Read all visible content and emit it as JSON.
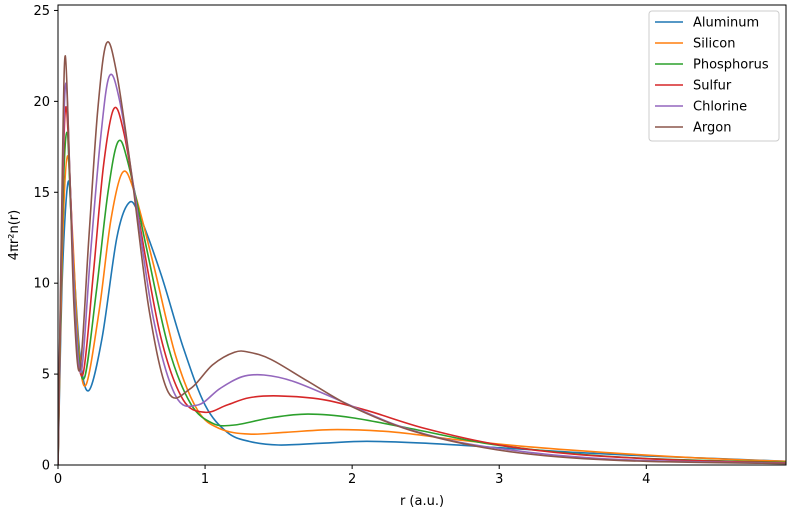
{
  "chart_data": {
    "type": "line",
    "title": "",
    "xlabel": "r (a.u.)",
    "ylabel": "4πr²n(r)",
    "xlim": [
      0,
      4.95
    ],
    "ylim": [
      0,
      25.3
    ],
    "xticks": [
      0,
      1,
      2,
      3,
      4
    ],
    "yticks": [
      0,
      5,
      10,
      15,
      20,
      25
    ],
    "grid": false,
    "legend_position": "top-right",
    "series": [
      {
        "name": "Aluminum",
        "color": "#1f77b4",
        "x": [
          0,
          0.03,
          0.07,
          0.1,
          0.15,
          0.21,
          0.3,
          0.4,
          0.48,
          0.55,
          0.7,
          0.85,
          1.0,
          1.15,
          1.3,
          1.5,
          1.8,
          2.1,
          2.5,
          3.0,
          3.5,
          4.0,
          4.5,
          4.95
        ],
        "y": [
          0,
          10.5,
          15.6,
          12.0,
          6.0,
          4.1,
          7.0,
          12.5,
          14.4,
          13.8,
          10.5,
          6.5,
          3.3,
          1.8,
          1.3,
          1.1,
          1.2,
          1.3,
          1.2,
          0.95,
          0.7,
          0.5,
          0.35,
          0.2
        ]
      },
      {
        "name": "Silicon",
        "color": "#ff7f0e",
        "x": [
          0,
          0.03,
          0.065,
          0.1,
          0.14,
          0.19,
          0.28,
          0.36,
          0.44,
          0.52,
          0.65,
          0.8,
          0.95,
          1.1,
          1.3,
          1.55,
          1.9,
          2.3,
          2.7,
          3.2,
          3.7,
          4.2,
          4.6,
          4.95
        ],
        "y": [
          0,
          12.0,
          17.0,
          12.5,
          6.5,
          4.4,
          8.5,
          13.5,
          16.1,
          15.0,
          11.0,
          6.0,
          3.0,
          2.0,
          1.7,
          1.8,
          1.95,
          1.8,
          1.4,
          1.0,
          0.7,
          0.45,
          0.3,
          0.2
        ]
      },
      {
        "name": "Phosphorus",
        "color": "#2ca02c",
        "x": [
          0,
          0.03,
          0.06,
          0.09,
          0.13,
          0.18,
          0.26,
          0.34,
          0.41,
          0.48,
          0.6,
          0.75,
          0.9,
          1.05,
          1.2,
          1.45,
          1.7,
          2.0,
          2.4,
          2.9,
          3.4,
          3.9,
          4.4,
          4.95
        ],
        "y": [
          0,
          13.5,
          18.3,
          13.5,
          7.0,
          4.8,
          9.5,
          15.0,
          17.8,
          16.5,
          12.0,
          6.5,
          3.4,
          2.3,
          2.2,
          2.6,
          2.8,
          2.6,
          2.0,
          1.2,
          0.7,
          0.4,
          0.25,
          0.15
        ]
      },
      {
        "name": "Sulfur",
        "color": "#d62728",
        "x": [
          0,
          0.03,
          0.055,
          0.09,
          0.12,
          0.17,
          0.24,
          0.31,
          0.38,
          0.45,
          0.55,
          0.7,
          0.85,
          1.0,
          1.15,
          1.3,
          1.5,
          1.8,
          2.1,
          2.5,
          3.0,
          3.5,
          4.0,
          4.5,
          4.95
        ],
        "y": [
          0,
          14.5,
          19.7,
          14.0,
          7.5,
          5.0,
          10.5,
          16.5,
          19.6,
          18.2,
          13.5,
          7.0,
          3.6,
          2.9,
          3.3,
          3.7,
          3.8,
          3.6,
          3.0,
          2.0,
          1.1,
          0.6,
          0.35,
          0.2,
          0.12
        ]
      },
      {
        "name": "Chlorine",
        "color": "#9467bd",
        "x": [
          0,
          0.03,
          0.055,
          0.085,
          0.12,
          0.16,
          0.22,
          0.29,
          0.35,
          0.42,
          0.52,
          0.65,
          0.8,
          0.95,
          1.1,
          1.25,
          1.4,
          1.6,
          1.9,
          2.3,
          2.7,
          3.2,
          3.7,
          4.2,
          4.95
        ],
        "y": [
          0,
          15.5,
          21.0,
          15.0,
          8.0,
          5.2,
          11.5,
          18.0,
          21.4,
          20.0,
          15.0,
          8.0,
          3.8,
          3.3,
          4.2,
          4.85,
          4.95,
          4.6,
          3.6,
          2.2,
          1.3,
          0.7,
          0.35,
          0.2,
          0.1
        ]
      },
      {
        "name": "Argon",
        "color": "#8c564b",
        "x": [
          0,
          0.03,
          0.05,
          0.08,
          0.11,
          0.15,
          0.21,
          0.27,
          0.33,
          0.4,
          0.5,
          0.62,
          0.75,
          0.9,
          1.05,
          1.2,
          1.3,
          1.45,
          1.7,
          2.0,
          2.4,
          2.9,
          3.4,
          4.0,
          4.95
        ],
        "y": [
          0,
          16.5,
          22.5,
          16.0,
          8.5,
          5.3,
          12.5,
          19.5,
          23.2,
          21.5,
          16.0,
          8.5,
          4.0,
          4.2,
          5.5,
          6.2,
          6.2,
          5.8,
          4.6,
          3.2,
          1.9,
          0.95,
          0.45,
          0.2,
          0.08
        ]
      }
    ]
  }
}
